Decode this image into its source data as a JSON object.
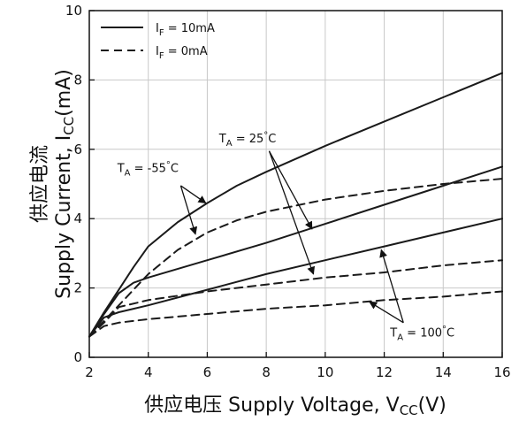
{
  "chart_data": {
    "type": "line",
    "title": "",
    "xlabel": {
      "cjk": "供应电压",
      "text": "Supply Voltage, V",
      "sub": "CC",
      "unit": "(V)"
    },
    "ylabel": {
      "cjk": "供应电流",
      "text": "Supply Current, I",
      "sub": "CC",
      "unit": "(mA)"
    },
    "xlim": [
      2,
      16
    ],
    "ylim": [
      0,
      10
    ],
    "xticks": [
      2,
      4,
      6,
      8,
      10,
      12,
      14,
      16
    ],
    "yticks": [
      0,
      2,
      4,
      6,
      8,
      10
    ],
    "grid": true,
    "legend": {
      "placement": "top-left",
      "entries": [
        {
          "style": "solid",
          "label": "I",
          "sub": "F",
          "rest": " = 10mA"
        },
        {
          "style": "dashed",
          "label": "I",
          "sub": "F",
          "rest": " = 0mA"
        }
      ]
    },
    "series": [
      {
        "style": "solid",
        "x": [
          2,
          2.5,
          3,
          3.5,
          4,
          5,
          6,
          7,
          8,
          10,
          12,
          14,
          16
        ],
        "y": [
          0.6,
          1.3,
          1.95,
          2.6,
          3.2,
          3.9,
          4.45,
          4.95,
          5.35,
          6.1,
          6.8,
          7.5,
          8.2
        ]
      },
      {
        "style": "solid",
        "x": [
          2,
          2.5,
          3,
          3.5,
          4,
          6,
          8,
          10,
          12,
          14,
          16
        ],
        "y": [
          0.6,
          1.25,
          1.85,
          2.15,
          2.3,
          2.8,
          3.3,
          3.85,
          4.4,
          4.95,
          5.5
        ]
      },
      {
        "style": "solid",
        "x": [
          2,
          2.5,
          3,
          3.5,
          4,
          6,
          8,
          10,
          12,
          14,
          16
        ],
        "y": [
          0.6,
          1.15,
          1.3,
          1.4,
          1.5,
          1.95,
          2.4,
          2.8,
          3.2,
          3.6,
          4.0
        ]
      },
      {
        "style": "dashed",
        "x": [
          2,
          3,
          4,
          5,
          6,
          7,
          8,
          10,
          12,
          14,
          16
        ],
        "y": [
          0.6,
          1.5,
          2.4,
          3.1,
          3.6,
          3.95,
          4.2,
          4.55,
          4.8,
          5.0,
          5.15
        ]
      },
      {
        "style": "dashed",
        "x": [
          2,
          2.5,
          3,
          4,
          6,
          8,
          10,
          12,
          14,
          16
        ],
        "y": [
          0.6,
          1.0,
          1.45,
          1.65,
          1.9,
          2.1,
          2.3,
          2.45,
          2.65,
          2.8
        ]
      },
      {
        "style": "dashed",
        "x": [
          2,
          2.5,
          3,
          4,
          6,
          8,
          10,
          12,
          14,
          16
        ],
        "y": [
          0.6,
          0.9,
          1.0,
          1.1,
          1.25,
          1.4,
          1.5,
          1.65,
          1.75,
          1.9
        ]
      }
    ],
    "annotations": [
      {
        "label": "T",
        "sub": "A",
        "rest": " = -55",
        "deg": "°",
        "unit": "C",
        "at": [
          2.95,
          5.35
        ],
        "arrows": [
          [
            [
              5.1,
              4.95
            ],
            [
              5.95,
              4.45
            ]
          ],
          [
            [
              5.1,
              4.95
            ],
            [
              5.6,
              3.55
            ]
          ]
        ]
      },
      {
        "label": "T",
        "sub": "A",
        "rest": " = 25",
        "deg": "°",
        "unit": "C",
        "at": [
          6.4,
          6.2
        ],
        "arrows": [
          [
            [
              8.1,
              5.95
            ],
            [
              9.55,
              3.7
            ]
          ],
          [
            [
              8.1,
              5.95
            ],
            [
              9.6,
              2.4
            ]
          ]
        ]
      },
      {
        "label": "T",
        "sub": "A",
        "rest": " = 100",
        "deg": "°",
        "unit": "C",
        "at": [
          12.2,
          0.6
        ],
        "arrows": [
          [
            [
              12.65,
              1.0
            ],
            [
              11.9,
              3.1
            ]
          ],
          [
            [
              12.65,
              1.0
            ],
            [
              11.5,
              1.6
            ]
          ]
        ]
      }
    ]
  }
}
